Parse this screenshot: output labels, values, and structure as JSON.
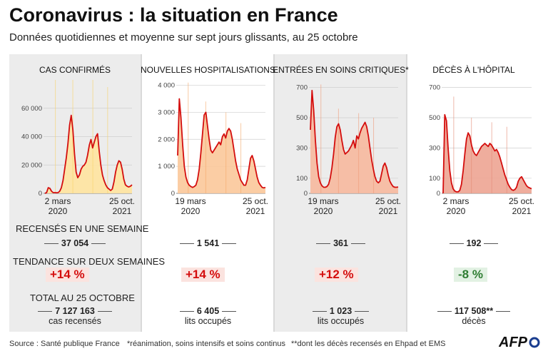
{
  "header": {
    "title": "Coronavirus : la situation en France",
    "subtitle": "Données quotidiennes et moyenne sur sept jours glissants, au 25 octobre"
  },
  "row_labels": {
    "weekly": "RECENSÉS EN UNE SEMAINE",
    "trend": "TENDANCE SUR DEUX SEMAINES",
    "total": "TOTAL AU 25 OCTOBRE"
  },
  "colors": {
    "line": "#d40d0d",
    "trend_up": "#d40d0d",
    "trend_down": "#2e7d32"
  },
  "panels": [
    {
      "title": "CAS CONFIRMÉS",
      "weekly": "37 054",
      "trend": "+14 %",
      "trend_dir": "up",
      "total": "7 127 163",
      "total_sub": "cas recensés",
      "xlabels": [
        [
          "2 mars",
          "2020"
        ],
        [
          "25 oct.",
          "2021"
        ]
      ],
      "fill": "#ffe4a0",
      "daily_color": "#f8d26a"
    },
    {
      "title": "NOUVELLES HOSPITALISATIONS",
      "weekly": "1 541",
      "trend": "+14 %",
      "trend_dir": "up",
      "total": "6 405",
      "total_sub": "lits occupés",
      "xlabels": [
        [
          "19 mars",
          "2020"
        ],
        [
          "25 oct.",
          "2021"
        ]
      ],
      "fill": "#fbc89a",
      "daily_color": "#f5a96a"
    },
    {
      "title": "ENTRÉES EN SOINS CRITIQUES*",
      "weekly": "361",
      "trend": "+12 %",
      "trend_dir": "up",
      "total": "1 023",
      "total_sub": "lits occupés",
      "xlabels": [
        [
          "19 mars",
          "2020"
        ],
        [
          "25 oct.",
          "2021"
        ]
      ],
      "fill": "#f7b99e",
      "daily_color": "#f09a78"
    },
    {
      "title": "DÉCÈS À L'HÔPITAL",
      "weekly": "192",
      "trend": "-8 %",
      "trend_dir": "down",
      "total": "117 508**",
      "total_sub": "décès",
      "xlabels": [
        [
          "2 mars",
          "2020"
        ],
        [
          "25 oct.",
          "2021"
        ]
      ],
      "fill": "#eda492",
      "daily_color": "#e38a74"
    }
  ],
  "footer": {
    "source": "Source : Santé publique France",
    "note1": "*réanimation, soins intensifs et soins continus",
    "note2": "**dont les décès recensés en Ehpad et EMS",
    "logo": "AFP"
  },
  "chart_data": [
    {
      "type": "area",
      "title": "CAS CONFIRMÉS",
      "ylim": [
        0,
        80000
      ],
      "yticks": [
        {
          "v": 0,
          "label": "0"
        },
        {
          "v": 20000,
          "label": "20 000"
        },
        {
          "v": 40000,
          "label": "40 000"
        },
        {
          "v": 60000,
          "label": "60 000"
        }
      ],
      "x_start": "2 mars 2020",
      "x_end": "25 oct. 2021",
      "series": [
        {
          "name": "moyenne sur sept jours",
          "values": [
            0,
            500,
            4000,
            3500,
            1500,
            500,
            500,
            400,
            500,
            1500,
            4000,
            9000,
            17000,
            25000,
            35000,
            48000,
            55000,
            45000,
            28000,
            15000,
            11000,
            13000,
            17000,
            19000,
            20000,
            22000,
            27000,
            34000,
            38000,
            32000,
            36000,
            40000,
            42000,
            30000,
            20000,
            13000,
            9000,
            6000,
            4000,
            3000,
            2000,
            3000,
            8000,
            15000,
            20000,
            23000,
            22000,
            17000,
            10000,
            6000,
            5000,
            4500,
            5000,
            6000
          ]
        }
      ],
      "daily_peaks": [
        120000,
        88000,
        87000,
        75000
      ]
    },
    {
      "type": "area",
      "title": "NOUVELLES HOSPITALISATIONS",
      "ylim": [
        0,
        4200
      ],
      "yticks": [
        {
          "v": 0,
          "label": "0"
        },
        {
          "v": 1000,
          "label": "1 000"
        },
        {
          "v": 2000,
          "label": "2 000"
        },
        {
          "v": 3000,
          "label": "3 000"
        },
        {
          "v": 4000,
          "label": "4 000"
        }
      ],
      "x_start": "19 mars 2020",
      "x_end": "25 oct. 2021",
      "series": [
        {
          "name": "moyenne sur sept jours",
          "values": [
            1400,
            3500,
            2800,
            1800,
            1000,
            600,
            400,
            300,
            250,
            220,
            250,
            300,
            500,
            900,
            1500,
            2200,
            2900,
            3000,
            2500,
            2000,
            1600,
            1500,
            1600,
            1700,
            1800,
            1900,
            1800,
            2100,
            2200,
            2050,
            2300,
            2400,
            2300,
            2000,
            1600,
            1200,
            900,
            700,
            500,
            400,
            300,
            300,
            500,
            900,
            1300,
            1400,
            1200,
            900,
            600,
            400,
            300,
            220,
            200,
            220
          ]
        }
      ],
      "daily_peaks": [
        4100,
        3400,
        3000,
        2600
      ]
    },
    {
      "type": "area",
      "title": "ENTRÉES EN SOINS CRITIQUES*",
      "ylim": [
        0,
        750
      ],
      "yticks": [
        {
          "v": 0,
          "label": "0"
        },
        {
          "v": 100,
          "label": "100"
        },
        {
          "v": 300,
          "label": "300"
        },
        {
          "v": 500,
          "label": "500"
        },
        {
          "v": 700,
          "label": "700"
        }
      ],
      "x_start": "19 mars 2020",
      "x_end": "25 oct. 2021",
      "series": [
        {
          "name": "moyenne sur sept jours",
          "values": [
            420,
            680,
            550,
            350,
            200,
            110,
            70,
            50,
            40,
            40,
            45,
            60,
            100,
            170,
            260,
            370,
            440,
            460,
            420,
            350,
            290,
            260,
            270,
            280,
            300,
            320,
            350,
            300,
            380,
            360,
            400,
            430,
            450,
            470,
            440,
            380,
            300,
            220,
            160,
            110,
            80,
            70,
            80,
            130,
            180,
            200,
            170,
            120,
            80,
            60,
            45,
            40,
            40,
            42
          ]
        }
      ],
      "daily_peaks": [
        720,
        560,
        530,
        500
      ]
    },
    {
      "type": "area",
      "title": "DÉCÈS À L'HÔPITAL",
      "ylim": [
        0,
        750
      ],
      "yticks": [
        {
          "v": 0,
          "label": "0"
        },
        {
          "v": 100,
          "label": "100"
        },
        {
          "v": 300,
          "label": "300"
        },
        {
          "v": 500,
          "label": "500"
        },
        {
          "v": 700,
          "label": "700"
        }
      ],
      "x_start": "2 mars 2020",
      "x_end": "25 oct. 2021",
      "series": [
        {
          "name": "moyenne sur sept jours",
          "values": [
            0,
            520,
            480,
            300,
            150,
            70,
            30,
            15,
            10,
            10,
            20,
            60,
            150,
            260,
            360,
            400,
            380,
            320,
            280,
            260,
            250,
            270,
            290,
            310,
            320,
            330,
            320,
            310,
            330,
            320,
            300,
            280,
            290,
            270,
            240,
            200,
            160,
            120,
            90,
            60,
            40,
            25,
            20,
            25,
            40,
            80,
            100,
            110,
            90,
            70,
            50,
            40,
            35,
            30
          ]
        }
      ],
      "daily_peaks": [
        640,
        500,
        470,
        440
      ]
    }
  ]
}
